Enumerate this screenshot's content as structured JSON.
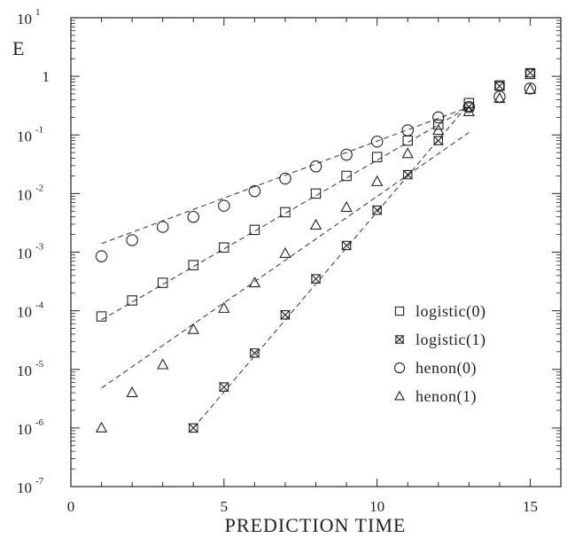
{
  "chart_data": {
    "type": "scatter",
    "xlabel": "PREDICTION TIME",
    "ylabel": "E",
    "xlim": [
      0,
      16
    ],
    "ylim": [
      1e-07,
      10
    ],
    "yscale": "log",
    "x_ticks": [
      0,
      5,
      10,
      15
    ],
    "y_ticks": [
      {
        "base": "10",
        "exp": "1"
      },
      {
        "base": "1",
        "exp": ""
      },
      {
        "base": "10",
        "exp": "-1"
      },
      {
        "base": "10",
        "exp": "-2"
      },
      {
        "base": "10",
        "exp": "-3"
      },
      {
        "base": "10",
        "exp": "-4"
      },
      {
        "base": "10",
        "exp": "-5"
      },
      {
        "base": "10",
        "exp": "-6"
      },
      {
        "base": "10",
        "exp": "-7"
      }
    ],
    "grid": false,
    "legend_position": "lower-right",
    "series": [
      {
        "name": "logistic(0)",
        "marker": "square",
        "x": [
          1,
          2,
          3,
          4,
          5,
          6,
          7,
          8,
          9,
          10,
          11,
          12,
          13,
          14,
          15
        ],
        "y": [
          8e-05,
          0.00015,
          0.0003,
          0.0006,
          0.0012,
          0.0024,
          0.0048,
          0.01,
          0.02,
          0.042,
          0.08,
          0.15,
          0.35,
          0.7,
          1.1
        ],
        "fit": {
          "x": [
            1,
            13
          ],
          "y": [
            7e-05,
            0.3
          ]
        }
      },
      {
        "name": "logistic(1)",
        "marker": "bowtie",
        "x": [
          4,
          5,
          6,
          7,
          8,
          9,
          10,
          11,
          12,
          13,
          14,
          15
        ],
        "y": [
          1e-06,
          5e-06,
          1.9e-05,
          8.5e-05,
          0.00035,
          0.0013,
          0.0052,
          0.021,
          0.08,
          0.3,
          0.68,
          1.15
        ],
        "fit": {
          "x": [
            4,
            13
          ],
          "y": [
            1e-06,
            0.34
          ]
        }
      },
      {
        "name": "henon(0)",
        "marker": "circle",
        "x": [
          1,
          2,
          3,
          4,
          5,
          6,
          7,
          8,
          9,
          10,
          11,
          12,
          13,
          14,
          15
        ],
        "y": [
          0.00085,
          0.0016,
          0.0027,
          0.004,
          0.0062,
          0.011,
          0.018,
          0.029,
          0.046,
          0.077,
          0.12,
          0.2,
          0.3,
          0.45,
          0.62
        ],
        "fit": {
          "x": [
            1,
            13
          ],
          "y": [
            0.0014,
            0.3
          ]
        }
      },
      {
        "name": "henon(1)",
        "marker": "triangle",
        "x": [
          1,
          2,
          3,
          4,
          5,
          6,
          7,
          8,
          9,
          10,
          11,
          12,
          13,
          14,
          15
        ],
        "y": [
          1e-06,
          4e-06,
          1.2e-05,
          4.8e-05,
          0.00011,
          0.0003,
          0.00095,
          0.0029,
          0.0058,
          0.016,
          0.048,
          0.12,
          0.25,
          0.42,
          0.6
        ],
        "fit": {
          "x": [
            1,
            13
          ],
          "y": [
            4.8e-06,
            0.11
          ]
        }
      }
    ]
  }
}
